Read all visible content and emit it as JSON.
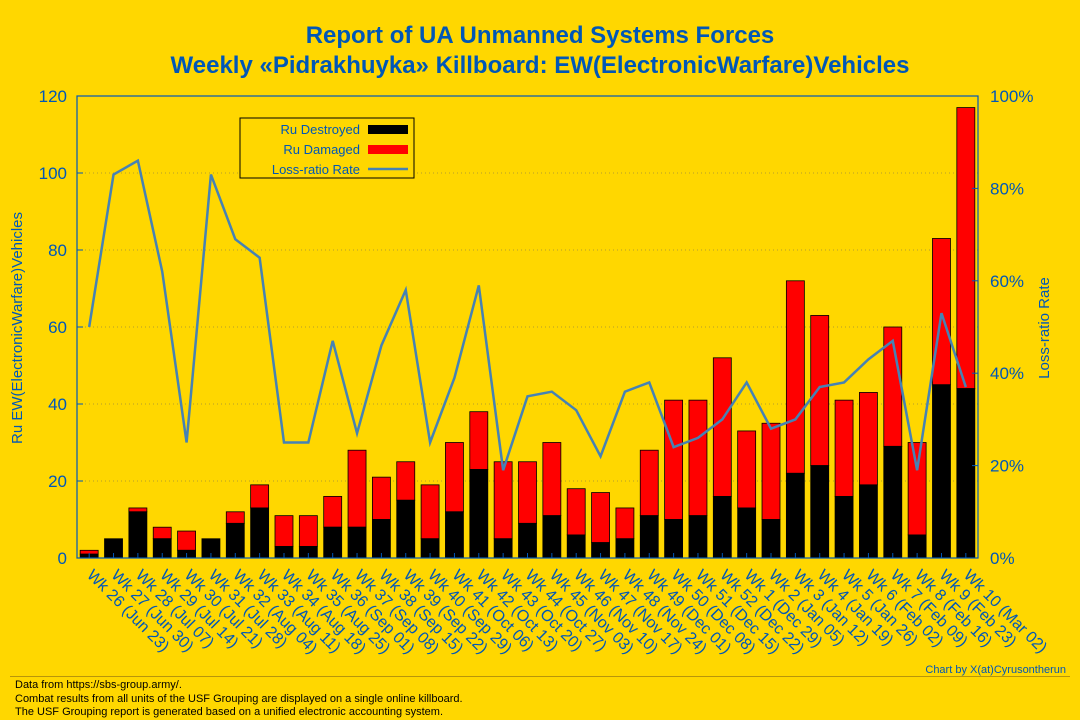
{
  "chart_data": {
    "type": "bar",
    "title": "Report of UA Unmanned Systems Forces",
    "subtitle": "Weekly «Pidrakhuyka» Killboard: EW(ElectronicWarfare)Vehicles",
    "ylabel": "Ru EW(ElectronicWarfare)Vehicles",
    "y2label": "Loss-ratio Rate",
    "ylim": [
      0,
      120
    ],
    "y2lim": [
      0,
      100
    ],
    "yticks": [
      "0",
      "20",
      "40",
      "60",
      "80",
      "100",
      "120"
    ],
    "y2ticks": [
      "0%",
      "20%",
      "40%",
      "60%",
      "80%",
      "100%"
    ],
    "legend_position": "top-left",
    "categories": [
      "Wk 26 (Jun 23)",
      "Wk 27 (Jun 30)",
      "Wk 28 (Jul 07)",
      "Wk 29 (Jul 14)",
      "Wk 30 (Jul 21)",
      "Wk 31 (Jul 28)",
      "Wk 32 (Aug 04)",
      "Wk 33 (Aug 11)",
      "Wk 34 (Aug 18)",
      "Wk 35 (Aug 25)",
      "Wk 36 (Sep 01)",
      "Wk 37 (Sep 08)",
      "Wk 38 (Sep 15)",
      "Wk 39 (Sep 22)",
      "Wk 40 (Sep 29)",
      "Wk 41 (Oct 06)",
      "Wk 42 (Oct 13)",
      "Wk 43 (Oct 20)",
      "Wk 44 (Oct 27)",
      "Wk 45 (Nov 03)",
      "Wk 46 (Nov 10)",
      "Wk 47 (Nov 17)",
      "Wk 48 (Nov 24)",
      "Wk 49 (Dec 01)",
      "Wk 50 (Dec 08)",
      "Wk 51 (Dec 15)",
      "Wk 52 (Dec 22)",
      "Wk 1 (Dec 29)",
      "Wk 2 (Jan 05)",
      "Wk 3 (Jan 12)",
      "Wk 4 (Jan 19)",
      "Wk 5 (Jan 26)",
      "Wk 6 (Feb 02)",
      "Wk 7 (Feb 09)",
      "Wk 8 (Feb 16)",
      "Wk 9 (Feb 23)",
      "Wk 10 (Mar 02)"
    ],
    "series": [
      {
        "name": "Ru Destroyed",
        "color": "#000000",
        "values": [
          1,
          5,
          12,
          5,
          2,
          5,
          9,
          13,
          3,
          3,
          8,
          8,
          10,
          15,
          5,
          12,
          23,
          5,
          9,
          11,
          6,
          4,
          5,
          11,
          10,
          11,
          16,
          13,
          10,
          22,
          24,
          16,
          19,
          29,
          6,
          45,
          44
        ]
      },
      {
        "name": "Ru Damaged",
        "color": "#FF0000",
        "values": [
          1,
          0,
          1,
          3,
          5,
          0,
          3,
          6,
          8,
          8,
          8,
          20,
          11,
          10,
          14,
          18,
          15,
          20,
          16,
          19,
          12,
          13,
          8,
          17,
          31,
          30,
          36,
          20,
          25,
          50,
          39,
          25,
          24,
          31,
          24,
          38,
          73
        ]
      },
      {
        "name": "Loss-ratio Rate",
        "color": "#4682B4",
        "axis": "right",
        "values": [
          50,
          83,
          86,
          62,
          25,
          83,
          69,
          65,
          25,
          25,
          47,
          27,
          46,
          58,
          25,
          39,
          59,
          19,
          35,
          36,
          32,
          22,
          36,
          38,
          24,
          26,
          30,
          38,
          28,
          30,
          37,
          38,
          43,
          47,
          19,
          53,
          37
        ]
      }
    ]
  },
  "footer": {
    "line1": "Data from https://sbs-group.army/.",
    "line2": "Combat results from all units of the USF Grouping are displayed on a single online killboard.",
    "line3": "The USF Grouping report is generated based on a unified electronic accounting system.",
    "credit": "Chart by X(at)Cyrusontherun"
  },
  "colors": {
    "background": "#FFD700",
    "title": "#0057B7",
    "axis": "#0057B7",
    "grid": "#9a8a3a"
  }
}
